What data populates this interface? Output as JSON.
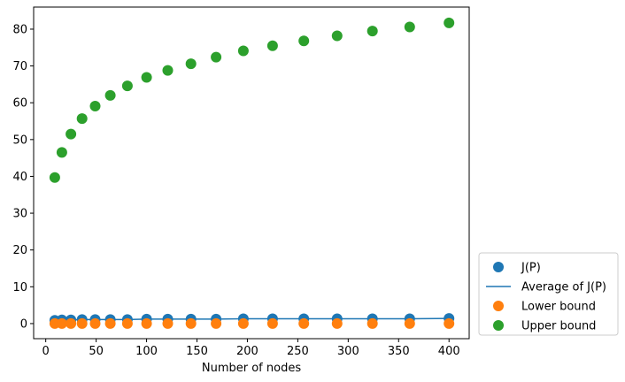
{
  "chart_data": {
    "type": "scatter",
    "title": "",
    "xlabel": "Number of nodes",
    "ylabel": "",
    "xlim": [
      -12,
      420
    ],
    "ylim": [
      -4.1,
      86
    ],
    "xticks": [
      0,
      50,
      100,
      150,
      200,
      250,
      300,
      350,
      400
    ],
    "yticks": [
      0,
      10,
      20,
      30,
      40,
      50,
      60,
      70,
      80
    ],
    "grid": false,
    "legend_position": "outside-bottom-right",
    "x": [
      9,
      16,
      25,
      36,
      49,
      64,
      81,
      100,
      121,
      144,
      169,
      196,
      225,
      256,
      289,
      324,
      361,
      400
    ],
    "series": [
      {
        "name": "J(P)",
        "kind": "scatter",
        "color": "#1f77b4",
        "values": [
          0.9,
          1.0,
          1.0,
          1.1,
          1.1,
          1.1,
          1.1,
          1.2,
          1.2,
          1.2,
          1.2,
          1.3,
          1.3,
          1.3,
          1.3,
          1.3,
          1.3,
          1.4
        ]
      },
      {
        "name": "Average of J(P)",
        "kind": "line",
        "color": "#1f77b4",
        "values": [
          0.9,
          1.0,
          1.0,
          1.1,
          1.1,
          1.1,
          1.1,
          1.2,
          1.2,
          1.2,
          1.2,
          1.3,
          1.3,
          1.3,
          1.3,
          1.3,
          1.3,
          1.4
        ]
      },
      {
        "name": "Lower bound",
        "kind": "scatter",
        "color": "#ff7f0e",
        "values": [
          0,
          0,
          0,
          0,
          0,
          0,
          0,
          0,
          0,
          0,
          0,
          0,
          0,
          0,
          0,
          0,
          0,
          0
        ]
      },
      {
        "name": "Upper bound",
        "kind": "scatter",
        "color": "#2ca02c",
        "values": [
          39.7,
          46.5,
          51.5,
          55.7,
          59.1,
          62.0,
          64.6,
          66.9,
          68.8,
          70.6,
          72.4,
          74.1,
          75.5,
          76.8,
          78.2,
          79.5,
          80.6,
          81.7
        ]
      }
    ]
  }
}
